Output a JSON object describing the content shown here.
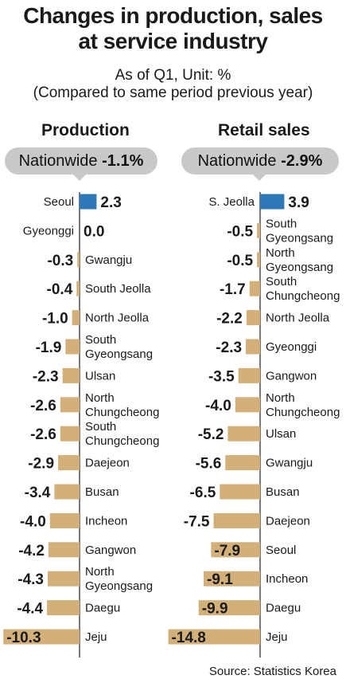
{
  "title_line1": "Changes in production, sales",
  "title_line2": "at service industry",
  "subtitle_line1": "As of Q1, Unit: %",
  "subtitle_line2": "(Compared to same period previous year)",
  "source": "Source: Statistics Korea",
  "colors": {
    "highlight": "#2f78b7",
    "bar": "#d3b07a",
    "pill": "#c8c9cb",
    "axis": "#222222"
  },
  "chart_data": [
    {
      "type": "bar",
      "title": "Production",
      "badge_label": "Nationwide",
      "badge_value": "-1.1%",
      "highlight_index": 0,
      "items": [
        {
          "label": "Seoul",
          "value": 2.3
        },
        {
          "label": "Gyeonggi",
          "value": 0.0
        },
        {
          "label": "Gwangju",
          "value": -0.3
        },
        {
          "label": "South Jeolla",
          "value": -0.4
        },
        {
          "label": "North Jeolla",
          "value": -1.0
        },
        {
          "label": "South Gyeongsang",
          "value": -1.9
        },
        {
          "label": "Ulsan",
          "value": -2.3
        },
        {
          "label": "North Chungcheong",
          "value": -2.6
        },
        {
          "label": "South Chungcheong",
          "value": -2.6
        },
        {
          "label": "Daejeon",
          "value": -2.9
        },
        {
          "label": "Busan",
          "value": -3.4
        },
        {
          "label": "Incheon",
          "value": -4.0
        },
        {
          "label": "Gangwon",
          "value": -4.2
        },
        {
          "label": "North Gyeongsang",
          "value": -4.3
        },
        {
          "label": "Daegu",
          "value": -4.4
        },
        {
          "label": "Jeju",
          "value": -10.3
        }
      ]
    },
    {
      "type": "bar",
      "title": "Retail sales",
      "badge_label": "Nationwide",
      "badge_value": "-2.9%",
      "highlight_index": 0,
      "items": [
        {
          "label": "S. Jeolla",
          "value": 3.9
        },
        {
          "label": "South Gyeongsang",
          "value": -0.5
        },
        {
          "label": "North Gyeongsang",
          "value": -0.5
        },
        {
          "label": "South Chungcheong",
          "value": -1.7
        },
        {
          "label": "North Jeolla",
          "value": -2.2
        },
        {
          "label": "Gyeonggi",
          "value": -2.3
        },
        {
          "label": "Gangwon",
          "value": -3.5
        },
        {
          "label": "North Chungcheong",
          "value": -4.0
        },
        {
          "label": "Ulsan",
          "value": -5.2
        },
        {
          "label": "Gwangju",
          "value": -5.6
        },
        {
          "label": "Busan",
          "value": -6.5
        },
        {
          "label": "Daejeon",
          "value": -7.5
        },
        {
          "label": "Seoul",
          "value": -7.9
        },
        {
          "label": "Incheon",
          "value": -9.1
        },
        {
          "label": "Daegu",
          "value": -9.9
        },
        {
          "label": "Jeju",
          "value": -14.8
        }
      ]
    }
  ]
}
